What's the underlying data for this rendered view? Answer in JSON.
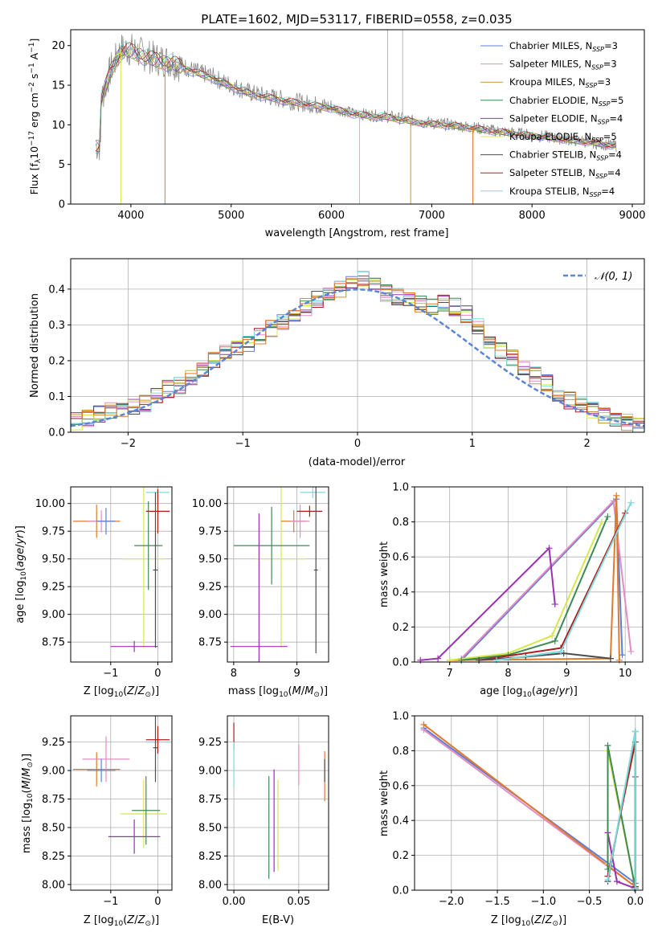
{
  "chart_data": [
    {
      "id": "spectrum",
      "type": "line",
      "title": "PLATE=1602, MJD=53117, FIBERID=0558, z=0.035",
      "xlabel": "wavelength [Angstrom, rest frame]",
      "ylabel": "Flux [f_λ 10^-17 erg cm^-2 s^-1 A^-1]",
      "xlim": [
        3400,
        9120
      ],
      "ylim": [
        0,
        22
      ],
      "xticks": [
        4000,
        5000,
        6000,
        7000,
        8000,
        9000
      ],
      "yticks": [
        0,
        5,
        10,
        15,
        20
      ],
      "grid": false,
      "legend_position": "top-right",
      "observed": {
        "x": [
          3700,
          3800,
          3900,
          4000,
          4100,
          4200,
          4300,
          4400,
          4500,
          4600,
          4700,
          4800,
          4900,
          5000,
          5200,
          5400,
          5600,
          5800,
          6000,
          6200,
          6400,
          6600,
          6800,
          7000,
          7200,
          7400,
          7600,
          7800,
          8000,
          8200,
          8400,
          8600,
          8800
        ],
        "y": [
          13,
          17,
          19.5,
          19.5,
          19,
          18.5,
          18.2,
          18,
          17.5,
          17,
          16.5,
          16.2,
          15.5,
          15,
          14,
          13.5,
          13,
          12.6,
          12.2,
          11.5,
          11.2,
          11,
          10.5,
          10.2,
          10,
          9.7,
          9.3,
          9,
          8.7,
          8.4,
          8.1,
          7.8,
          7.4
        ]
      },
      "series": [
        {
          "name": "Chabrier MILES, N_SSP=3",
          "color": "#5b7fd6"
        },
        {
          "name": "Salpeter MILES, N_SSP=3",
          "color": "#e58bc2"
        },
        {
          "name": "Kroupa MILES, N_SSP=3",
          "color": "#c8962e"
        },
        {
          "name": "Chabrier ELODIE, N_SSP=5",
          "color": "#3e8a55"
        },
        {
          "name": "Salpeter ELODIE, N_SSP=4",
          "color": "#9b30b0"
        },
        {
          "name": "Kroupa ELODIE, N_SSP=5",
          "color": "#d4e84c"
        },
        {
          "name": "Chabrier STELIB, N_SSP=4",
          "color": "#4d4d4d"
        },
        {
          "name": "Salpeter STELIB, N_SSP=4",
          "color": "#b01c1c"
        },
        {
          "name": "Kroupa STELIB, N_SSP=4",
          "color": "#7ddbdb"
        }
      ]
    },
    {
      "id": "residuals",
      "type": "line",
      "xlabel": "(data-model)/error",
      "ylabel": "Normed distribution",
      "xlim": [
        -2.5,
        2.5
      ],
      "ylim": [
        0,
        0.485
      ],
      "xticks": [
        -2,
        -1,
        0,
        1,
        2
      ],
      "yticks": [
        0.0,
        0.1,
        0.2,
        0.3,
        0.4
      ],
      "grid": true,
      "legend": "𝒩(0, 1)",
      "bin_edges_start": -2.5,
      "bin_width": 0.1,
      "hist_values": [
        0.03,
        0.04,
        0.05,
        0.06,
        0.06,
        0.07,
        0.08,
        0.1,
        0.12,
        0.13,
        0.15,
        0.17,
        0.2,
        0.22,
        0.24,
        0.25,
        0.27,
        0.29,
        0.31,
        0.33,
        0.35,
        0.37,
        0.38,
        0.4,
        0.42,
        0.43,
        0.41,
        0.39,
        0.38,
        0.37,
        0.36,
        0.35,
        0.36,
        0.35,
        0.33,
        0.3,
        0.26,
        0.23,
        0.21,
        0.18,
        0.16,
        0.14,
        0.11,
        0.09,
        0.08,
        0.06,
        0.05,
        0.04,
        0.03,
        0.02
      ]
    },
    {
      "id": "age-vs-z",
      "type": "scatter",
      "xlabel": "Z [log10(Z/Z⊙)]",
      "ylabel": "age [log10(age/yr)]",
      "xlim": [
        -1.85,
        0.3
      ],
      "ylim": [
        8.57,
        10.15
      ],
      "xticks": [
        -1,
        0
      ],
      "yticks": [
        8.75,
        9.0,
        9.25,
        9.5,
        9.75,
        10.0
      ],
      "grid": true,
      "points": [
        {
          "x": -1.3,
          "y": 9.84,
          "xerr": 0.5,
          "yerr": 0.15,
          "color": "#e07b2b"
        },
        {
          "x": -1.2,
          "y": 9.84,
          "xerr": 0.3,
          "yerr": 0.1,
          "color": "#e58bc2"
        },
        {
          "x": -1.1,
          "y": 9.84,
          "xerr": 0.2,
          "yerr": 0.12,
          "color": "#5b7fd6"
        },
        {
          "x": -0.3,
          "y": 9.5,
          "xerr": 0.45,
          "yerr": 0.8,
          "color": "#d4e84c"
        },
        {
          "x": -0.2,
          "y": 9.62,
          "xerr": 0.3,
          "yerr": 0.4,
          "color": "#3e8a55"
        },
        {
          "x": -0.5,
          "y": 8.71,
          "xerr": 0.5,
          "yerr": 0.05,
          "color": "#9b30b0"
        },
        {
          "x": 0.0,
          "y": 10.1,
          "xerr": 0.25,
          "yerr": 0.05,
          "color": "#7ddbdb"
        },
        {
          "x": 0.0,
          "y": 9.93,
          "xerr": 0.25,
          "yerr": 0.2,
          "color": "#b01c1c"
        },
        {
          "x": -0.05,
          "y": 9.4,
          "xerr": 0.05,
          "yerr": 0.7,
          "color": "#4d4d4d"
        }
      ]
    },
    {
      "id": "age-vs-mass",
      "type": "scatter",
      "xlabel": "mass [log10(M/M⊙)]",
      "ylabel": "",
      "xlim": [
        7.9,
        9.5
      ],
      "ylim": [
        8.57,
        10.15
      ],
      "xticks": [
        8,
        9
      ],
      "yticks": [
        8.75,
        9.0,
        9.25,
        9.5,
        9.75,
        10.0
      ],
      "grid": true,
      "points": [
        {
          "x": 8.75,
          "y": 9.5,
          "xerr": 0.4,
          "yerr": 0.8,
          "color": "#d4e84c"
        },
        {
          "x": 8.6,
          "y": 9.62,
          "xerr": 0.6,
          "yerr": 0.35,
          "color": "#3e8a55"
        },
        {
          "x": 8.4,
          "y": 8.71,
          "xerr": 0.45,
          "yerr": 1.2,
          "color": "#9b30b0"
        },
        {
          "x": 8.95,
          "y": 9.84,
          "xerr": 0.2,
          "yerr": 0.1,
          "color": "#e07b2b"
        },
        {
          "x": 9.05,
          "y": 9.84,
          "xerr": 0.15,
          "yerr": 0.15,
          "color": "#e58bc2"
        },
        {
          "x": 9.25,
          "y": 10.1,
          "xerr": 0.2,
          "yerr": 0.05,
          "color": "#7ddbdb"
        },
        {
          "x": 9.2,
          "y": 9.93,
          "xerr": 0.2,
          "yerr": 0.05,
          "color": "#b01c1c"
        },
        {
          "x": 9.3,
          "y": 9.4,
          "xerr": 0.03,
          "yerr": 0.75,
          "color": "#4d4d4d"
        }
      ]
    },
    {
      "id": "weight-vs-age",
      "type": "line",
      "xlabel": "age [log10(age/yr)]",
      "ylabel": "mass weight",
      "xlim": [
        6.4,
        10.3
      ],
      "ylim": [
        0,
        1.0
      ],
      "xticks": [
        7,
        8,
        9,
        10
      ],
      "yticks": [
        0.0,
        0.2,
        0.4,
        0.6,
        0.8,
        1.0
      ],
      "grid": true,
      "series": [
        {
          "color": "#5b7fd6",
          "x": [
            7.2,
            9.85,
            9.95
          ],
          "y": [
            0.01,
            0.93,
            0.04
          ]
        },
        {
          "color": "#e58bc2",
          "x": [
            7.2,
            9.8,
            10.1
          ],
          "y": [
            0.02,
            0.92,
            0.06
          ]
        },
        {
          "color": "#e07b2b",
          "x": [
            7.0,
            9.75,
            9.85,
            9.9
          ],
          "y": [
            0.01,
            0.02,
            0.95,
            0.01
          ]
        },
        {
          "color": "#9b30b0",
          "x": [
            6.5,
            6.8,
            8.7,
            8.8
          ],
          "y": [
            0.01,
            0.02,
            0.65,
            0.33
          ]
        },
        {
          "color": "#d4e84c",
          "x": [
            7.0,
            8.0,
            8.75,
            9.6
          ],
          "y": [
            0.01,
            0.05,
            0.15,
            0.8
          ]
        },
        {
          "color": "#3e8a55",
          "x": [
            7.2,
            8.0,
            8.8,
            9.7
          ],
          "y": [
            0.01,
            0.04,
            0.12,
            0.83
          ]
        },
        {
          "color": "#b01c1c",
          "x": [
            7.5,
            8.9,
            10.0
          ],
          "y": [
            0.01,
            0.08,
            0.85
          ]
        },
        {
          "color": "#4d4d4d",
          "x": [
            7.5,
            8.3,
            8.95,
            9.75
          ],
          "y": [
            0.01,
            0.03,
            0.05,
            0.02
          ]
        },
        {
          "color": "#7ddbdb",
          "x": [
            7.8,
            8.9,
            10.1
          ],
          "y": [
            0.01,
            0.06,
            0.91
          ]
        }
      ]
    },
    {
      "id": "mass-vs-z",
      "type": "scatter",
      "xlabel": "Z [log10(Z/Z⊙)]",
      "ylabel": "mass [log10(M/M⊙)]",
      "xlim": [
        -1.85,
        0.3
      ],
      "ylim": [
        7.95,
        9.48
      ],
      "xticks": [
        -1,
        0
      ],
      "yticks": [
        8.0,
        8.25,
        8.5,
        8.75,
        9.0,
        9.25
      ],
      "grid": true,
      "points": [
        {
          "x": -1.3,
          "y": 9.01,
          "xerr": 0.5,
          "yerr": 0.15,
          "color": "#e07b2b"
        },
        {
          "x": -1.1,
          "y": 9.1,
          "xerr": 0.5,
          "yerr": 0.2,
          "color": "#e58bc2"
        },
        {
          "x": -1.2,
          "y": 9.0,
          "xerr": 0.3,
          "yerr": 0.1,
          "color": "#5b7fd6"
        },
        {
          "x": -0.3,
          "y": 8.62,
          "xerr": 0.5,
          "yerr": 0.3,
          "color": "#d4e84c"
        },
        {
          "x": -0.25,
          "y": 8.65,
          "xerr": 0.3,
          "yerr": 0.3,
          "color": "#3e8a55"
        },
        {
          "x": -0.5,
          "y": 8.42,
          "xerr": 0.55,
          "yerr": 0.15,
          "color": "#9b30b0"
        },
        {
          "x": 0.0,
          "y": 9.25,
          "xerr": 0.25,
          "yerr": 0.1,
          "color": "#7ddbdb"
        },
        {
          "x": 0.0,
          "y": 9.27,
          "xerr": 0.25,
          "yerr": 0.12,
          "color": "#b01c1c"
        },
        {
          "x": -0.05,
          "y": 9.2,
          "xerr": 0.05,
          "yerr": 0.3,
          "color": "#4d4d4d"
        }
      ]
    },
    {
      "id": "mass-vs-ebv",
      "type": "scatter",
      "xlabel": "E(B-V)",
      "ylabel": "",
      "xlim": [
        -0.005,
        0.073
      ],
      "ylim": [
        7.95,
        9.48
      ],
      "xticks": [
        0.0,
        0.05
      ],
      "xticklabels": [
        "0.00",
        "0.05"
      ],
      "yticks": [
        8.0,
        8.25,
        8.5,
        8.75,
        9.0,
        9.25
      ],
      "grid": true,
      "points": [
        {
          "x": 0.0,
          "y": 9.3,
          "xerr": 0,
          "yerr": 0.12,
          "color": "#b01c1c"
        },
        {
          "x": 0.0,
          "y": 9.05,
          "xerr": 0,
          "yerr": 0.2,
          "color": "#7ddbdb"
        },
        {
          "x": 0.027,
          "y": 8.5,
          "xerr": 0,
          "yerr": 0.45,
          "color": "#3e8a55"
        },
        {
          "x": 0.031,
          "y": 8.56,
          "xerr": 0,
          "yerr": 0.45,
          "color": "#9b30b0"
        },
        {
          "x": 0.034,
          "y": 8.52,
          "xerr": 0,
          "yerr": 0.4,
          "color": "#d4e84c"
        },
        {
          "x": 0.05,
          "y": 9.05,
          "xerr": 0,
          "yerr": 0.18,
          "color": "#e58bc2"
        },
        {
          "x": 0.07,
          "y": 8.95,
          "xerr": 0,
          "yerr": 0.22,
          "color": "#e07b2b"
        },
        {
          "x": 0.07,
          "y": 9.0,
          "xerr": 0,
          "yerr": 0.1,
          "color": "#4d4d4d"
        }
      ]
    },
    {
      "id": "weight-vs-z",
      "type": "line",
      "xlabel": "Z [log10(Z/Z⊙)]",
      "ylabel": "mass weight",
      "xlim": [
        -2.4,
        0.08
      ],
      "ylim": [
        0,
        1.0
      ],
      "xticks": [
        -2.0,
        -1.5,
        -1.0,
        -0.5,
        0.0
      ],
      "xticklabels": [
        "−2.0",
        "−1.5",
        "−1.0",
        "−0.5",
        "0.0"
      ],
      "yticks": [
        0.0,
        0.2,
        0.4,
        0.6,
        0.8,
        1.0
      ],
      "grid": true,
      "series": [
        {
          "color": "#5b7fd6",
          "x": [
            -2.3,
            0.0,
            -0.01
          ],
          "y": [
            0.93,
            0.04,
            0.01
          ]
        },
        {
          "color": "#e58bc2",
          "x": [
            -2.3,
            0.0,
            -0.02
          ],
          "y": [
            0.92,
            0.02,
            0.06
          ]
        },
        {
          "color": "#e07b2b",
          "x": [
            -2.3,
            0.0
          ],
          "y": [
            0.95,
            0.02
          ]
        },
        {
          "color": "#9b30b0",
          "x": [
            -0.3,
            -0.2,
            0.0,
            0.0
          ],
          "y": [
            0.33,
            0.05,
            0.01,
            0.65
          ]
        },
        {
          "color": "#d4e84c",
          "x": [
            -0.3,
            -0.3,
            0.0
          ],
          "y": [
            0.15,
            0.8,
            0.01
          ]
        },
        {
          "color": "#3e8a55",
          "x": [
            -0.3,
            -0.3,
            0.0
          ],
          "y": [
            0.12,
            0.83,
            0.01
          ]
        },
        {
          "color": "#b01c1c",
          "x": [
            -0.3,
            0.0,
            0.0
          ],
          "y": [
            0.08,
            0.85,
            0.01
          ]
        },
        {
          "color": "#4d4d4d",
          "x": [
            -0.3,
            0.0,
            0.0
          ],
          "y": [
            0.05,
            0.91,
            0.02
          ]
        },
        {
          "color": "#7ddbdb",
          "x": [
            -0.3,
            0.0,
            0.0
          ],
          "y": [
            0.06,
            0.91,
            0.01
          ]
        }
      ]
    }
  ]
}
